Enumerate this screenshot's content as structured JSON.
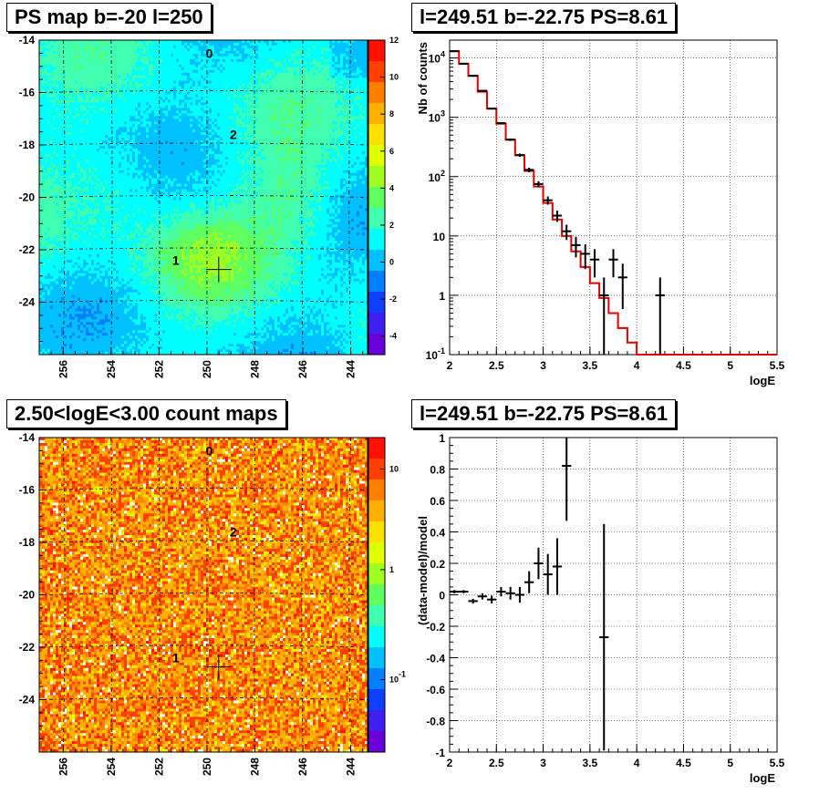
{
  "panels": {
    "ps_map": {
      "title": "PS map b=-20 l=250"
    },
    "spectrum": {
      "title": "l=249.51 b=-22.75 PS=8.61"
    },
    "count_map": {
      "title": "2.50<logE<3.00 count maps"
    },
    "residual": {
      "title": "l=249.51 b=-22.75 PS=8.61"
    }
  },
  "chart_data": [
    {
      "type": "heatmap",
      "title": "PS map b=-20 l=250",
      "x_ticks": [
        "256",
        "254",
        "252",
        "250",
        "248",
        "246",
        "244"
      ],
      "y_ticks": [
        "-14",
        "-16",
        "-18",
        "-20",
        "-22",
        "-24"
      ],
      "xlim": [
        257,
        243.3
      ],
      "ylim": [
        -26,
        -14
      ],
      "colorbar_ticks": [
        "12",
        "10",
        "8",
        "6",
        "4",
        "2",
        "0",
        "-2",
        "-4"
      ],
      "colorbar_range": [
        -5,
        12
      ],
      "sources": [
        {
          "label": "0",
          "l": 249.9,
          "b": -14.5
        },
        {
          "label": "2",
          "l": 248.9,
          "b": -17.6
        },
        {
          "label": "1",
          "l": 251.3,
          "b": -22.4
        }
      ],
      "marker": {
        "l": 249.51,
        "b": -22.75
      },
      "grid_lines": "dashed"
    },
    {
      "type": "line",
      "title": "l=249.51 b=-22.75 PS=8.61",
      "xlabel": "logE",
      "ylabel": "Nb of counts",
      "x_ticks": [
        "2",
        "2.5",
        "3",
        "3.5",
        "4",
        "4.5",
        "5",
        "5.5"
      ],
      "y_ticks": [
        "10^4",
        "10^3",
        "10^2",
        "10",
        "1",
        "10^-1"
      ],
      "xlim": [
        2,
        5.5
      ],
      "ylim": [
        0.1,
        20000
      ],
      "yscale": "log",
      "grid": true,
      "series": [
        {
          "kind": "model-histogram",
          "bin_edges": [
            2.0,
            2.1,
            2.2,
            2.3,
            2.4,
            2.5,
            2.6,
            2.7,
            2.8,
            2.9,
            3.0,
            3.1,
            3.2,
            3.3,
            3.4,
            3.5,
            3.6,
            3.7,
            3.8,
            3.9,
            4.0,
            5.5
          ],
          "values": [
            13000,
            8000,
            5000,
            2700,
            1400,
            780,
            420,
            230,
            125,
            68,
            36,
            19,
            10,
            5.5,
            3,
            1.6,
            0.9,
            0.5,
            0.28,
            0.16,
            0.1
          ]
        },
        {
          "kind": "data-points",
          "x": [
            2.05,
            2.15,
            2.25,
            2.35,
            2.45,
            2.55,
            2.65,
            2.75,
            2.85,
            2.95,
            3.05,
            3.15,
            3.25,
            3.35,
            3.45,
            3.55,
            3.65,
            3.75,
            3.85,
            4.25
          ],
          "y": [
            13000,
            8000,
            5000,
            2800,
            1400,
            800,
            420,
            230,
            130,
            75,
            40,
            22,
            12,
            7,
            5,
            4,
            1,
            4,
            2,
            1
          ]
        }
      ]
    },
    {
      "type": "heatmap",
      "title": "2.50<logE<3.00 count maps",
      "x_ticks": [
        "256",
        "254",
        "252",
        "250",
        "248",
        "246",
        "244"
      ],
      "y_ticks": [
        "-14",
        "-16",
        "-18",
        "-20",
        "-22",
        "-24"
      ],
      "xlim": [
        257,
        243.3
      ],
      "ylim": [
        -26,
        -14
      ],
      "colorbar_ticks": [
        "10",
        "1",
        "10^-1"
      ],
      "colorbar_scale": "log",
      "sources": [
        {
          "label": "0",
          "l": 249.9,
          "b": -14.5
        },
        {
          "label": "2",
          "l": 248.9,
          "b": -17.6
        },
        {
          "label": "1",
          "l": 251.3,
          "b": -22.4
        }
      ],
      "marker": {
        "l": 249.51,
        "b": -22.75
      },
      "grid_lines": "dashed"
    },
    {
      "type": "scatter",
      "title": "l=249.51 b=-22.75 PS=8.61",
      "xlabel": "logE",
      "ylabel": "(data-model)/model",
      "x_ticks": [
        "2",
        "2.5",
        "3",
        "3.5",
        "4",
        "4.5",
        "5",
        "5.5"
      ],
      "y_ticks": [
        "1",
        "0.8",
        "0.6",
        "0.4",
        "0.2",
        "0",
        "-0.2",
        "-0.4",
        "-0.6",
        "-0.8",
        "-1"
      ],
      "xlim": [
        2,
        5.5
      ],
      "ylim": [
        -1,
        1
      ],
      "grid": true,
      "x": [
        2.05,
        2.15,
        2.25,
        2.35,
        2.45,
        2.55,
        2.65,
        2.75,
        2.85,
        2.95,
        3.05,
        3.15,
        3.25,
        3.65
      ],
      "y": [
        0.02,
        0.02,
        -0.04,
        -0.01,
        -0.03,
        0.02,
        0.01,
        0.0,
        0.08,
        0.2,
        0.13,
        0.18,
        0.82,
        -0.27
      ],
      "yerr": [
        0.01,
        0.01,
        0.015,
        0.02,
        0.025,
        0.03,
        0.04,
        0.05,
        0.07,
        0.1,
        0.13,
        0.18,
        0.35,
        0.72
      ]
    }
  ]
}
